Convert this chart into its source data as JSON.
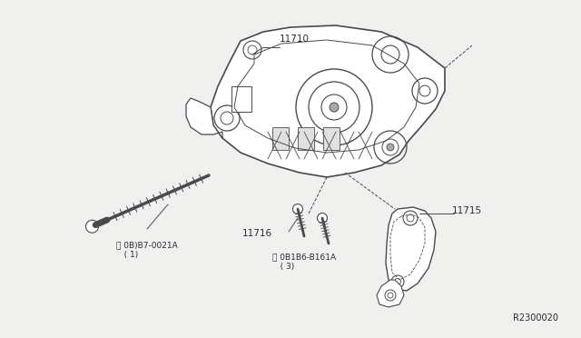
{
  "bg_color": "#f0f0ee",
  "line_color": "#4a4a4a",
  "text_color": "#2a2a2a",
  "ref_code": "R2300020",
  "label_11710": "11710",
  "label_11715": "11715",
  "label_11716": "11716",
  "label_B1_line1": "Ⓑ 0B)B7-0021A",
  "label_B1_line2": "   ( 1)",
  "label_B2_line1": "Ⓑ 0B1B6-B161A",
  "label_B2_line2": "   ( 3)"
}
